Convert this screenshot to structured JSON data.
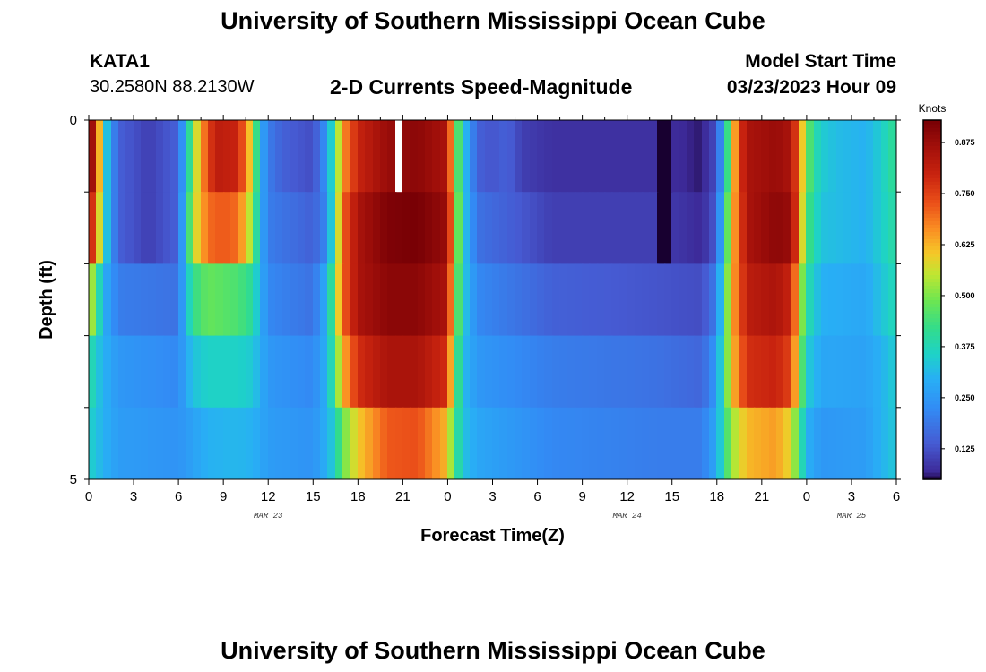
{
  "page": {
    "title_top": "University of Southern Mississippi Ocean Cube",
    "title_bottom": "University of Southern Mississippi Ocean Cube",
    "station_id": "KATA1",
    "station_coords": "30.2580N  88.2130W",
    "plot_title": "2-D Currents Speed-Magnitude",
    "model_start_label": "Model Start Time",
    "model_start_value": "03/23/2023 Hour 09"
  },
  "chart_data": {
    "type": "heatmap",
    "title": "2-D Currents Speed-Magnitude",
    "xlabel": "Forecast Time(Z)",
    "ylabel": "Depth (ft)",
    "colorbar_label": "Knots",
    "colorbar_ticks": [
      "0.125",
      "0.250",
      "0.375",
      "0.500",
      "0.625",
      "0.750",
      "0.875"
    ],
    "colorbar_range": [
      0.05,
      0.93
    ],
    "x_tick_labels": [
      "0",
      "3",
      "6",
      "9",
      "12",
      "15",
      "18",
      "21",
      "0",
      "3",
      "6",
      "9",
      "12",
      "15",
      "18",
      "21",
      "0",
      "3",
      "6"
    ],
    "y_tick_labels": [
      "0",
      "5"
    ],
    "date_labels": [
      "MAR 23",
      "MAR 24",
      "MAR 25"
    ],
    "date_label_hours": [
      12,
      36,
      51
    ],
    "xlim_hours": [
      0,
      54
    ],
    "ylim_ft": [
      0,
      5
    ],
    "depth_layers": 5,
    "hours_per_column": 0.5,
    "layer_keyframes": [
      [
        [
          0,
          0.88
        ],
        [
          0.5,
          0.85
        ],
        [
          1,
          0.4
        ],
        [
          1.5,
          0.25
        ],
        [
          2,
          0.15
        ],
        [
          4,
          0.1
        ],
        [
          6,
          0.15
        ],
        [
          6.5,
          0.32
        ],
        [
          7,
          0.5
        ],
        [
          7.5,
          0.65
        ],
        [
          8.5,
          0.82
        ],
        [
          10,
          0.8
        ],
        [
          11,
          0.55
        ],
        [
          11.5,
          0.3
        ],
        [
          12,
          0.2
        ],
        [
          13,
          0.15
        ],
        [
          15,
          0.12
        ],
        [
          16,
          0.25
        ],
        [
          16.5,
          0.45
        ],
        [
          17,
          0.65
        ],
        [
          18,
          0.8
        ],
        [
          20,
          0.88
        ],
        [
          22,
          0.9
        ],
        [
          24,
          0.85
        ],
        [
          24.5,
          0.55
        ],
        [
          25,
          0.35
        ],
        [
          26,
          0.15
        ],
        [
          27,
          0.13
        ],
        [
          28,
          0.15
        ],
        [
          29,
          0.1
        ],
        [
          31,
          0.08
        ],
        [
          38,
          0.08
        ],
        [
          41,
          0.06
        ],
        [
          42,
          0.12
        ],
        [
          42.5,
          0.3
        ],
        [
          43,
          0.55
        ],
        [
          43.5,
          0.75
        ],
        [
          44,
          0.85
        ],
        [
          46,
          0.88
        ],
        [
          47,
          0.85
        ],
        [
          47.5,
          0.7
        ],
        [
          48,
          0.5
        ],
        [
          48.5,
          0.4
        ],
        [
          49,
          0.35
        ],
        [
          50,
          0.32
        ],
        [
          52,
          0.3
        ],
        [
          53,
          0.35
        ],
        [
          54,
          0.42
        ]
      ],
      [
        [
          0,
          0.8
        ],
        [
          0.5,
          0.75
        ],
        [
          1,
          0.4
        ],
        [
          1.5,
          0.25
        ],
        [
          2,
          0.15
        ],
        [
          4,
          0.1
        ],
        [
          6,
          0.15
        ],
        [
          6.5,
          0.35
        ],
        [
          7,
          0.55
        ],
        [
          8,
          0.7
        ],
        [
          9,
          0.72
        ],
        [
          10,
          0.7
        ],
        [
          11,
          0.5
        ],
        [
          11.5,
          0.3
        ],
        [
          12,
          0.2
        ],
        [
          15,
          0.15
        ],
        [
          16,
          0.22
        ],
        [
          16.5,
          0.45
        ],
        [
          17,
          0.7
        ],
        [
          18,
          0.85
        ],
        [
          20,
          0.92
        ],
        [
          22,
          0.93
        ],
        [
          24,
          0.88
        ],
        [
          24.5,
          0.6
        ],
        [
          25,
          0.35
        ],
        [
          26,
          0.18
        ],
        [
          28,
          0.15
        ],
        [
          31,
          0.1
        ],
        [
          38,
          0.1
        ],
        [
          41,
          0.07
        ],
        [
          42,
          0.14
        ],
        [
          42.5,
          0.35
        ],
        [
          43,
          0.6
        ],
        [
          44,
          0.85
        ],
        [
          46,
          0.9
        ],
        [
          47,
          0.88
        ],
        [
          47.5,
          0.7
        ],
        [
          48,
          0.45
        ],
        [
          49,
          0.33
        ],
        [
          52,
          0.3
        ],
        [
          53,
          0.35
        ],
        [
          54,
          0.4
        ]
      ],
      [
        [
          0,
          0.6
        ],
        [
          0.5,
          0.45
        ],
        [
          1,
          0.3
        ],
        [
          1.5,
          0.25
        ],
        [
          2,
          0.2
        ],
        [
          6,
          0.18
        ],
        [
          6.5,
          0.32
        ],
        [
          7,
          0.42
        ],
        [
          8,
          0.48
        ],
        [
          10,
          0.45
        ],
        [
          11,
          0.4
        ],
        [
          11.5,
          0.3
        ],
        [
          12,
          0.22
        ],
        [
          15,
          0.18
        ],
        [
          16,
          0.3
        ],
        [
          16.5,
          0.5
        ],
        [
          17,
          0.7
        ],
        [
          18,
          0.85
        ],
        [
          20,
          0.9
        ],
        [
          22,
          0.9
        ],
        [
          24,
          0.85
        ],
        [
          24.5,
          0.55
        ],
        [
          25,
          0.35
        ],
        [
          26,
          0.22
        ],
        [
          31,
          0.15
        ],
        [
          38,
          0.13
        ],
        [
          41,
          0.12
        ],
        [
          42,
          0.2
        ],
        [
          42.5,
          0.4
        ],
        [
          43,
          0.62
        ],
        [
          44,
          0.82
        ],
        [
          46,
          0.85
        ],
        [
          47,
          0.8
        ],
        [
          47.5,
          0.6
        ],
        [
          48,
          0.4
        ],
        [
          49,
          0.3
        ],
        [
          52,
          0.28
        ],
        [
          53,
          0.33
        ],
        [
          54,
          0.38
        ]
      ],
      [
        [
          0,
          0.4
        ],
        [
          1,
          0.3
        ],
        [
          2,
          0.25
        ],
        [
          6,
          0.22
        ],
        [
          6.5,
          0.28
        ],
        [
          7,
          0.33
        ],
        [
          8,
          0.36
        ],
        [
          10,
          0.36
        ],
        [
          11,
          0.34
        ],
        [
          12,
          0.25
        ],
        [
          15,
          0.22
        ],
        [
          16,
          0.3
        ],
        [
          16.5,
          0.45
        ],
        [
          17,
          0.62
        ],
        [
          18,
          0.78
        ],
        [
          20,
          0.85
        ],
        [
          22,
          0.85
        ],
        [
          24,
          0.78
        ],
        [
          24.5,
          0.5
        ],
        [
          25,
          0.32
        ],
        [
          26,
          0.25
        ],
        [
          31,
          0.2
        ],
        [
          38,
          0.18
        ],
        [
          41,
          0.16
        ],
        [
          42,
          0.25
        ],
        [
          42.5,
          0.42
        ],
        [
          43,
          0.6
        ],
        [
          44,
          0.78
        ],
        [
          46,
          0.8
        ],
        [
          47,
          0.75
        ],
        [
          47.5,
          0.55
        ],
        [
          48,
          0.35
        ],
        [
          49,
          0.28
        ],
        [
          52,
          0.27
        ],
        [
          53,
          0.3
        ],
        [
          54,
          0.35
        ]
      ],
      [
        [
          0,
          0.36
        ],
        [
          1,
          0.3
        ],
        [
          2,
          0.26
        ],
        [
          6,
          0.24
        ],
        [
          8,
          0.3
        ],
        [
          10,
          0.31
        ],
        [
          11,
          0.3
        ],
        [
          12,
          0.26
        ],
        [
          15,
          0.24
        ],
        [
          16,
          0.3
        ],
        [
          16.5,
          0.36
        ],
        [
          17,
          0.48
        ],
        [
          18,
          0.6
        ],
        [
          20,
          0.72
        ],
        [
          22,
          0.73
        ],
        [
          24,
          0.62
        ],
        [
          24.5,
          0.45
        ],
        [
          25,
          0.33
        ],
        [
          26,
          0.28
        ],
        [
          31,
          0.22
        ],
        [
          38,
          0.2
        ],
        [
          41,
          0.2
        ],
        [
          42,
          0.28
        ],
        [
          42.5,
          0.4
        ],
        [
          43,
          0.52
        ],
        [
          44,
          0.62
        ],
        [
          46,
          0.65
        ],
        [
          47,
          0.58
        ],
        [
          47.5,
          0.45
        ],
        [
          48,
          0.3
        ],
        [
          49,
          0.25
        ],
        [
          52,
          0.26
        ],
        [
          53,
          0.3
        ],
        [
          54,
          0.34
        ]
      ]
    ],
    "missing_cells": [
      [
        0,
        20.5,
        21
      ]
    ],
    "masked_cells": [
      [
        0,
        38,
        39,
        0.0
      ],
      [
        1,
        38,
        39,
        0.05
      ]
    ]
  }
}
